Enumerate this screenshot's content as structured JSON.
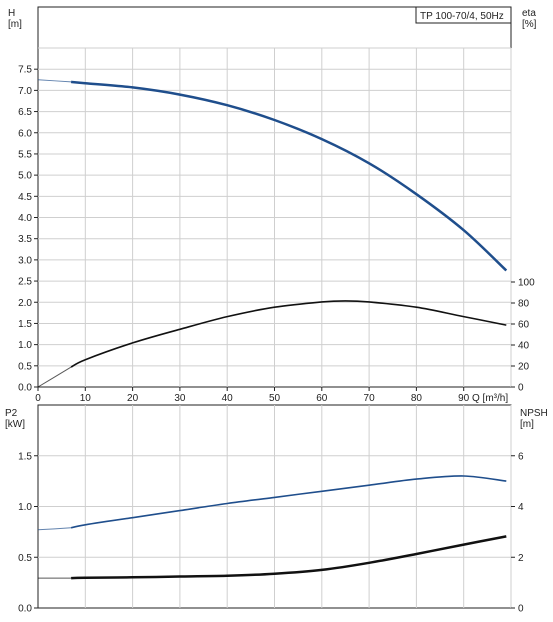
{
  "chart_data": [
    {
      "type": "line",
      "legend": "TP 100-70/4, 50Hz",
      "xlabel": "Q [m³/h]",
      "ylabel": "H",
      "ylabel_unit": "[m]",
      "y2label": "eta",
      "y2label_unit": "[%]",
      "xlim": [
        0,
        100
      ],
      "ylim": [
        0,
        8.0
      ],
      "xticks": [
        "0",
        "10",
        "20",
        "30",
        "40",
        "50",
        "60",
        "70",
        "80",
        "90"
      ],
      "yticks": [
        "0.0",
        "0.5",
        "1.0",
        "1.5",
        "2.0",
        "2.5",
        "3.0",
        "3.5",
        "4.0",
        "4.5",
        "5.0",
        "5.5",
        "6.0",
        "6.5",
        "7.0",
        "7.5"
      ],
      "y2ticks": [
        "0",
        "20",
        "40",
        "60",
        "80",
        "100"
      ],
      "grid": true,
      "series": [
        {
          "axis": "H",
          "color": "#1f4e8c",
          "x": [
            0,
            7,
            10,
            20,
            30,
            40,
            50,
            60,
            70,
            80,
            90,
            99
          ],
          "y": [
            7.25,
            7.2,
            7.17,
            7.07,
            6.9,
            6.65,
            6.3,
            5.85,
            5.28,
            4.55,
            3.7,
            2.75
          ]
        },
        {
          "axis": "eta",
          "color": "#111111",
          "x": [
            0,
            7,
            10,
            20,
            30,
            40,
            50,
            60,
            65,
            70,
            80,
            90,
            99
          ],
          "y": [
            0,
            19,
            26,
            42,
            55,
            67,
            76,
            81,
            82,
            81,
            76,
            67,
            59
          ]
        }
      ]
    },
    {
      "type": "line",
      "xlim": [
        0,
        100
      ],
      "ylabel": "P2",
      "ylabel_unit": "[kW]",
      "y2label": "NPSH",
      "y2label_unit": "[m]",
      "ylim": [
        0,
        2.0
      ],
      "yticks": [
        "0.0",
        "0.5",
        "1.0",
        "1.5"
      ],
      "y2ticks": [
        "0",
        "2",
        "4",
        "6"
      ],
      "grid": true,
      "series": [
        {
          "axis": "P2",
          "color": "#1f4e8c",
          "x": [
            0,
            7,
            10,
            20,
            30,
            40,
            50,
            60,
            70,
            80,
            90,
            99
          ],
          "y": [
            0.77,
            0.79,
            0.82,
            0.89,
            0.96,
            1.03,
            1.09,
            1.15,
            1.21,
            1.27,
            1.3,
            1.25
          ]
        },
        {
          "axis": "NPSH",
          "color": "#111111",
          "x": [
            0,
            7,
            10,
            20,
            30,
            40,
            50,
            60,
            70,
            80,
            90,
            99
          ],
          "y": [
            1.18,
            1.18,
            1.19,
            1.21,
            1.24,
            1.27,
            1.35,
            1.5,
            1.78,
            2.13,
            2.5,
            2.82
          ]
        }
      ]
    }
  ]
}
